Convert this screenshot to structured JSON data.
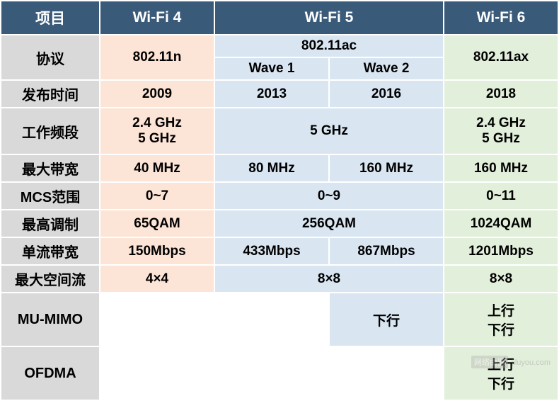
{
  "header": {
    "col1": "项目",
    "col2": "Wi-Fi 4",
    "col3": "Wi-Fi 5",
    "col4": "Wi-Fi 6"
  },
  "rows": {
    "protocol": {
      "label": "协议",
      "wifi4": "802.11n",
      "wifi5_top": "802.11ac",
      "wifi5_wave1": "Wave 1",
      "wifi5_wave2": "Wave 2",
      "wifi6": "802.11ax"
    },
    "release": {
      "label": "发布时间",
      "wifi4": "2009",
      "wifi5_w1": "2013",
      "wifi5_w2": "2016",
      "wifi6": "2018"
    },
    "band": {
      "label": "工作频段",
      "wifi4_line1": "2.4 GHz",
      "wifi4_line2": "5 GHz",
      "wifi5": "5 GHz",
      "wifi6_line1": "2.4 GHz",
      "wifi6_line2": "5 GHz"
    },
    "max_bw": {
      "label": "最大带宽",
      "wifi4": "40 MHz",
      "wifi5_w1": "80 MHz",
      "wifi5_w2": "160 MHz",
      "wifi6": "160 MHz"
    },
    "mcs": {
      "label": "MCS范围",
      "wifi4": "0~7",
      "wifi5": "0~9",
      "wifi6": "0~11"
    },
    "modulation": {
      "label": "最高调制",
      "wifi4": "65QAM",
      "wifi5": "256QAM",
      "wifi6": "1024QAM"
    },
    "single_stream": {
      "label": "单流带宽",
      "wifi4": "150Mbps",
      "wifi5_w1": "433Mbps",
      "wifi5_w2": "867Mbps",
      "wifi6": "1201Mbps"
    },
    "spatial": {
      "label": "最大空间流",
      "wifi4": "4×4",
      "wifi5": "8×8",
      "wifi6": "8×8"
    },
    "mumimo": {
      "label": "MU-MIMO",
      "wifi5_w2": "下行",
      "wifi6_line1": "上行",
      "wifi6_line2": "下行"
    },
    "ofdma": {
      "label": "OFDMA",
      "wifi6_line1": "上行",
      "wifi6_line2": "下行"
    }
  },
  "watermark": {
    "tag": "网络由器",
    "site": "jiluyou.com"
  },
  "styling": {
    "header_bg": "#3a5a7a",
    "header_fg": "#ffffff",
    "label_bg": "#d9d9d9",
    "wifi4_bg": "#fce4d6",
    "wifi5_bg": "#d9e6f2",
    "wifi6_bg": "#e2efda",
    "border_color": "#ffffff",
    "font_size_header": 21,
    "font_size_label": 20,
    "font_size_cell": 19
  }
}
